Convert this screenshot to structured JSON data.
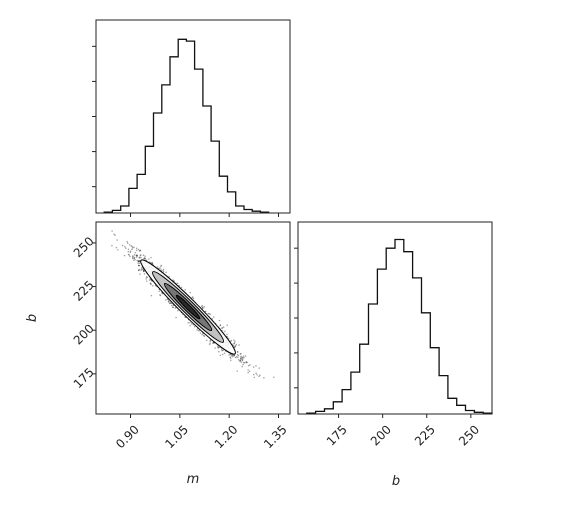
{
  "chart_data": [
    {
      "type": "histogram",
      "panel": "m-marginal",
      "xlabel": "",
      "ylabel": "",
      "xlim": [
        0.795,
        1.385
      ],
      "ylim": [
        0,
        1.1
      ],
      "y_tick_positions": [
        0.15,
        0.35,
        0.55,
        0.75,
        0.95
      ],
      "bin_edges": [
        0.82,
        0.845,
        0.87,
        0.895,
        0.92,
        0.945,
        0.97,
        0.995,
        1.02,
        1.045,
        1.07,
        1.095,
        1.12,
        1.145,
        1.17,
        1.195,
        1.22,
        1.245,
        1.27,
        1.295,
        1.32
      ],
      "counts": [
        0.005,
        0.015,
        0.04,
        0.14,
        0.22,
        0.38,
        0.57,
        0.73,
        0.89,
        0.99,
        0.98,
        0.82,
        0.61,
        0.41,
        0.21,
        0.12,
        0.04,
        0.02,
        0.01,
        0.005
      ]
    },
    {
      "type": "scatter",
      "panel": "m-b-joint",
      "xlabel": "m",
      "ylabel": "b",
      "xlim": [
        0.795,
        1.385
      ],
      "ylim": [
        152,
        262
      ],
      "x_ticks": [
        0.9,
        1.05,
        1.2,
        1.35
      ],
      "x_tick_labels": [
        "0.90",
        "1.05",
        "1.20",
        "1.35"
      ],
      "y_ticks": [
        175,
        200,
        225,
        250
      ],
      "y_tick_labels": [
        "175",
        "200",
        "225",
        "250"
      ],
      "mean": [
        1.075,
        213.3
      ],
      "std": [
        0.072,
        13.5
      ],
      "correlation": -0.97,
      "contour_levels_sigma": [
        0.5,
        1.0,
        1.5,
        2.0
      ]
    },
    {
      "type": "histogram",
      "panel": "b-marginal",
      "xlabel": "b",
      "ylabel": "",
      "xlim": [
        152,
        262
      ],
      "ylim": [
        0,
        1.1
      ],
      "x_ticks": [
        175,
        200,
        225,
        250
      ],
      "x_tick_labels": [
        "175",
        "200",
        "225",
        "250"
      ],
      "y_tick_positions": [
        0.15,
        0.35,
        0.55,
        0.75,
        0.95
      ],
      "bin_edges": [
        157,
        162,
        167,
        172,
        177,
        182,
        187,
        192,
        197,
        202,
        207,
        212,
        217,
        222,
        227,
        232,
        237,
        242,
        247,
        252,
        257,
        262
      ],
      "counts": [
        0.005,
        0.015,
        0.03,
        0.07,
        0.14,
        0.24,
        0.4,
        0.63,
        0.83,
        0.95,
        1.0,
        0.93,
        0.78,
        0.58,
        0.38,
        0.22,
        0.09,
        0.05,
        0.02,
        0.01,
        0.005
      ]
    }
  ]
}
